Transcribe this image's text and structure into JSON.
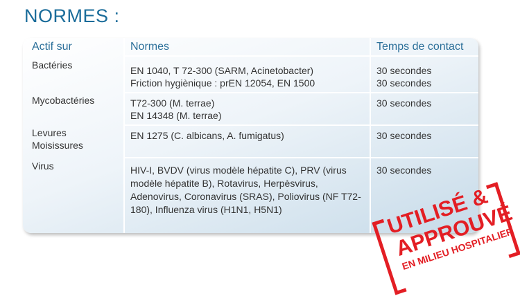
{
  "title": "NORMES :",
  "table": {
    "headers": [
      "Actif sur",
      "Normes",
      "Temps de contact"
    ],
    "rows": [
      {
        "actif": "Bactéries",
        "normes": [
          "EN 1040, T 72-300 (SARM, Acinetobacter)",
          "Friction hygiènique : prEN 12054, EN 1500"
        ],
        "temps": [
          "30 secondes",
          "30 secondes"
        ]
      },
      {
        "actif": "Mycobactéries",
        "normes": [
          "T72-300 (M. terrae)",
          "EN 14348 (M. terrae)"
        ],
        "temps": [
          "30 secondes"
        ]
      },
      {
        "actif": "Levures Moisissures",
        "normes": [
          "EN 1275 (C. albicans, A. fumigatus)"
        ],
        "temps": [
          "30 secondes"
        ]
      },
      {
        "actif": "Virus",
        "normes": [
          "HIV-I, BVDV (virus modèle hépatite C), PRV (virus modèle hépatite B), Rotavirus, Herpèsvirus, Adenovirus, Coronavirus (SRAS), Poliovirus (NF T72-180), Influenza virus (H1N1, H5N1)"
        ],
        "temps": [
          "30 secondes"
        ]
      }
    ]
  },
  "stamp": {
    "line1": "UTILISÉ &",
    "line2": "APPROUVÉ",
    "line3": "EN MILIEU HOSPITALIER",
    "color": "#e31e24"
  }
}
